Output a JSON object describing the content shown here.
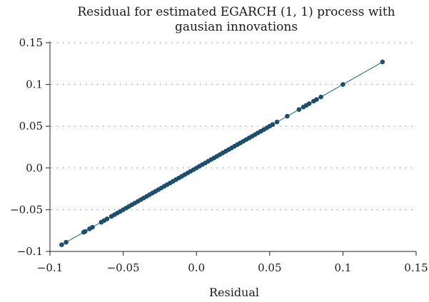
{
  "chart_data": {
    "type": "scatter",
    "title_lines": [
      "Residual for estimated EGARCH (1, 1) process with",
      "gausian innovations"
    ],
    "xlabel": "Residual",
    "ylabel": "",
    "xlim": [
      -0.1,
      0.15
    ],
    "ylim": [
      -0.1,
      0.15
    ],
    "x_ticks": [
      -0.1,
      -0.05,
      0.0,
      0.05,
      0.1,
      0.15
    ],
    "x_tick_labels": [
      "−0.1",
      "−0.05",
      "0.0",
      "0.05",
      "0.1",
      "0.15"
    ],
    "y_ticks": [
      0.15,
      0.1,
      0.05,
      0.0,
      -0.05,
      -0.1
    ],
    "y_tick_labels": [
      "0.15",
      "0.1",
      "0.05",
      "0.0",
      "−0.05",
      "−0.1"
    ],
    "grid": "horizontal dotted",
    "series": [
      {
        "color": "#1d4e6b",
        "line_color": "#2f7d6e",
        "points": [
          [
            -0.092,
            -0.092
          ],
          [
            -0.089,
            -0.089
          ],
          [
            -0.077,
            -0.077
          ],
          [
            -0.076,
            -0.076
          ],
          [
            -0.073,
            -0.073
          ],
          [
            -0.071,
            -0.071
          ],
          [
            -0.065,
            -0.065
          ],
          [
            -0.063,
            -0.063
          ],
          [
            -0.061,
            -0.061
          ],
          [
            -0.058,
            -0.058
          ],
          [
            -0.056,
            -0.056
          ],
          [
            -0.054,
            -0.054
          ],
          [
            -0.052,
            -0.052
          ],
          [
            -0.05,
            -0.05
          ],
          [
            -0.048,
            -0.048
          ],
          [
            -0.046,
            -0.046
          ],
          [
            -0.044,
            -0.044
          ],
          [
            -0.042,
            -0.042
          ],
          [
            -0.04,
            -0.04
          ],
          [
            -0.038,
            -0.038
          ],
          [
            -0.036,
            -0.036
          ],
          [
            -0.034,
            -0.034
          ],
          [
            -0.032,
            -0.032
          ],
          [
            -0.03,
            -0.03
          ],
          [
            -0.028,
            -0.028
          ],
          [
            -0.026,
            -0.026
          ],
          [
            -0.024,
            -0.024
          ],
          [
            -0.022,
            -0.022
          ],
          [
            -0.02,
            -0.02
          ],
          [
            -0.018,
            -0.018
          ],
          [
            -0.016,
            -0.016
          ],
          [
            -0.014,
            -0.014
          ],
          [
            -0.012,
            -0.012
          ],
          [
            -0.01,
            -0.01
          ],
          [
            -0.008,
            -0.008
          ],
          [
            -0.006,
            -0.006
          ],
          [
            -0.004,
            -0.004
          ],
          [
            -0.002,
            -0.002
          ],
          [
            0.0,
            0.0
          ],
          [
            0.002,
            0.002
          ],
          [
            0.004,
            0.004
          ],
          [
            0.006,
            0.006
          ],
          [
            0.008,
            0.008
          ],
          [
            0.01,
            0.01
          ],
          [
            0.012,
            0.012
          ],
          [
            0.014,
            0.014
          ],
          [
            0.016,
            0.016
          ],
          [
            0.018,
            0.018
          ],
          [
            0.02,
            0.02
          ],
          [
            0.022,
            0.022
          ],
          [
            0.024,
            0.024
          ],
          [
            0.026,
            0.026
          ],
          [
            0.028,
            0.028
          ],
          [
            0.03,
            0.03
          ],
          [
            0.032,
            0.032
          ],
          [
            0.034,
            0.034
          ],
          [
            0.036,
            0.036
          ],
          [
            0.038,
            0.038
          ],
          [
            0.04,
            0.04
          ],
          [
            0.042,
            0.042
          ],
          [
            0.044,
            0.044
          ],
          [
            0.046,
            0.046
          ],
          [
            0.048,
            0.048
          ],
          [
            0.05,
            0.05
          ],
          [
            0.052,
            0.052
          ],
          [
            0.055,
            0.055
          ],
          [
            0.062,
            0.062
          ],
          [
            0.07,
            0.07
          ],
          [
            0.073,
            0.073
          ],
          [
            0.075,
            0.075
          ],
          [
            0.077,
            0.077
          ],
          [
            0.08,
            0.08
          ],
          [
            0.082,
            0.082
          ],
          [
            0.085,
            0.085
          ],
          [
            0.1,
            0.1
          ],
          [
            0.127,
            0.127
          ]
        ]
      }
    ]
  }
}
